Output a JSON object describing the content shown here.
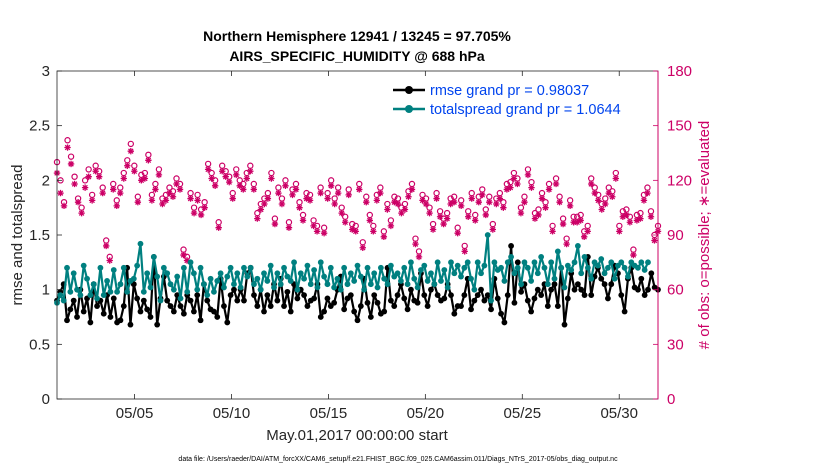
{
  "chart_data": {
    "type": "line",
    "title_line1": "Northern Hemisphere 12941 / 13245 = 97.705%",
    "title_line2": "AIRS_SPECIFIC_HUMIDITY @ 688 hPa",
    "xlabel": "May.01,2017 00:00:00 start",
    "ylabel_left": "rmse and totalspread",
    "ylabel_right": "# of obs: o=possible; ∗=evaluated",
    "footer": "data file: /Users/raeder/DAI/ATM_forcXX/CAM6_setup/f.e21.FHIST_BGC.f09_025.CAM6assim.011/Diags_NTrS_2017-05/obs_diag_output.nc",
    "xlim": [
      1.0,
      32.0
    ],
    "ylim_left": [
      0,
      3
    ],
    "ylim_right": [
      0,
      180
    ],
    "x_ticks": [
      5,
      10,
      15,
      20,
      25,
      30
    ],
    "x_tick_labels": [
      "05/05",
      "05/10",
      "05/15",
      "05/20",
      "05/25",
      "05/30"
    ],
    "y_ticks_left": [
      0,
      0.5,
      1,
      1.5,
      2,
      2.5,
      3
    ],
    "y_tick_labels_left": [
      "0",
      "0.5",
      "1",
      "1.5",
      "2",
      "2.5",
      "3"
    ],
    "y_ticks_right": [
      0,
      30,
      60,
      90,
      120,
      150,
      180
    ],
    "y_tick_labels_right": [
      "0",
      "30",
      "60",
      "90",
      "120",
      "150",
      "180"
    ],
    "colors": {
      "rmse": "#000000",
      "spread": "#008080",
      "obs": "#cc0066",
      "legend_text": "#0044ee"
    },
    "series": [
      {
        "name": "rmse grand pr = 0.98037",
        "axis": "left",
        "values": [
          0.9,
          0.98,
          1.05,
          0.72,
          0.82,
          0.9,
          0.75,
          1.0,
          0.8,
          0.92,
          0.7,
          1.05,
          0.85,
          0.9,
          0.78,
          0.95,
          0.75,
          0.92,
          0.7,
          0.72,
          0.85,
          1.2,
          0.68,
          1.05,
          0.92,
          0.8,
          0.9,
          0.82,
          0.75,
          1.3,
          0.68,
          0.92,
          1.12,
          0.9,
          0.85,
          0.8,
          0.95,
          0.85,
          0.78,
          0.95,
          0.9,
          0.8,
          0.95,
          0.72,
          1.05,
          0.9,
          0.82,
          0.8,
          0.75,
          1.1,
          0.85,
          0.7,
          0.95,
          1.0,
          0.9,
          1.0,
          0.9,
          1.15,
          1.2,
          0.95,
          0.85,
          1.0,
          0.8,
          0.95,
          0.85,
          1.05,
          0.9,
          1.1,
          0.85,
          0.98,
          0.8,
          1.05,
          0.92,
          1.0,
          0.95,
          0.85,
          0.9,
          0.92,
          1.05,
          0.75,
          0.8,
          0.92,
          0.85,
          0.88,
          1.0,
          1.12,
          0.82,
          0.92,
          0.95,
          0.8,
          0.72,
          0.85,
          1.1,
          0.88,
          0.75,
          0.95,
          0.88,
          0.78,
          0.8,
          1.2,
          0.9,
          0.85,
          0.95,
          1.05,
          0.92,
          0.82,
          1.0,
          0.9,
          0.88,
          1.15,
          0.95,
          0.85,
          1.0,
          1.05,
          0.95,
          0.9,
          0.92,
          1.05,
          0.95,
          0.78,
          0.85,
          0.85,
          0.95,
          1.1,
          0.82,
          0.9,
          0.95,
          1.0,
          0.9,
          0.95,
          0.82,
          1.1,
          0.92,
          0.78,
          0.7,
          0.95,
          1.4,
          0.88,
          1.25,
          0.98,
          1.05,
          0.9,
          0.8,
          0.92,
          1.0,
          0.95,
          1.05,
          0.85,
          1.0,
          1.05,
          0.85,
          1.2,
          0.68,
          0.92,
          1.15,
          1.0,
          1.05,
          1.0,
          0.95,
          1.3,
          0.95,
          1.12,
          1.2,
          1.1,
          1.05,
          0.92,
          1.05,
          1.22,
          1.15,
          0.95,
          0.8,
          1.1,
          1.2,
          1.02,
          1.0,
          1.1,
          0.95,
          1.0,
          1.15,
          1.02,
          1.0
        ]
      },
      {
        "name": "totalspread grand pr = 1.0644",
        "axis": "left",
        "values": [
          0.88,
          0.95,
          0.9,
          1.2,
          0.98,
          1.15,
          1.0,
          0.95,
          1.22,
          1.1,
          0.95,
          1.05,
          0.92,
          1.2,
          0.95,
          1.08,
          0.98,
          1.18,
          0.98,
          1.05,
          1.2,
          0.98,
          1.08,
          1.1,
          1.22,
          1.42,
          0.98,
          1.15,
          1.02,
          1.3,
          1.12,
          0.9,
          1.2,
          1.15,
          1.05,
          1.0,
          1.12,
          0.92,
          1.2,
          0.98,
          1.25,
          1.15,
          1.0,
          1.2,
          1.05,
          0.95,
          1.1,
          0.98,
          1.08,
          1.15,
          1.02,
          1.12,
          1.2,
          1.05,
          1.15,
          1.02,
          1.2,
          1.12,
          1.2,
          1.05,
          1.1,
          1.0,
          1.15,
          1.08,
          1.22,
          1.02,
          1.15,
          1.05,
          1.2,
          1.12,
          1.08,
          1.25,
          1.0,
          1.15,
          1.1,
          1.22,
          1.05,
          1.18,
          1.02,
          1.25,
          1.12,
          1.05,
          1.2,
          1.02,
          1.1,
          1.0,
          1.2,
          1.05,
          1.15,
          1.08,
          1.22,
          1.12,
          1.0,
          1.2,
          1.05,
          1.15,
          1.02,
          1.2,
          1.1,
          1.05,
          1.22,
          1.12,
          1.15,
          1.08,
          1.2,
          1.05,
          1.25,
          1.1,
          1.02,
          1.18,
          1.22,
          1.08,
          1.15,
          1.05,
          1.25,
          1.08,
          1.18,
          1.02,
          1.25,
          1.15,
          1.22,
          1.12,
          1.2,
          1.25,
          1.1,
          1.0,
          1.25,
          1.15,
          1.22,
          1.5,
          0.9,
          1.25,
          1.18,
          1.2,
          1.08,
          1.25,
          1.3,
          1.15,
          1.2,
          1.05,
          1.25,
          1.2,
          1.08,
          1.25,
          1.15,
          1.3,
          1.2,
          1.05,
          1.25,
          1.1,
          1.35,
          1.2,
          1.02,
          1.22,
          1.18,
          1.25,
          1.4,
          1.15,
          1.3,
          1.2,
          1.1,
          1.25,
          1.22,
          1.28,
          1.15,
          1.2,
          1.25,
          1.1,
          1.22,
          1.25,
          1.2,
          1.12,
          1.25,
          1.22,
          1.2,
          1.25,
          1.18,
          1.25
        ]
      }
    ],
    "obs_series": [
      {
        "name": "possible",
        "marker": "o",
        "values": [
          130,
          120,
          108,
          142,
          133,
          122,
          110,
          105,
          120,
          126,
          112,
          128,
          125,
          116,
          87,
          78,
          118,
          109,
          116,
          124,
          131,
          140,
          128,
          111,
          123,
          124,
          134,
          112,
          118,
          126,
          110,
          112,
          116,
          114,
          121,
          118,
          82,
          78,
          113,
          105,
          112,
          104,
          108,
          129,
          124,
          120,
          97,
          128,
          125,
          122,
          113,
          126,
          120,
          118,
          124,
          128,
          118,
          102,
          107,
          110,
          113,
          124,
          99,
          116,
          110,
          120,
          97,
          115,
          118,
          108,
          101,
          113,
          112,
          98,
          95,
          116,
          94,
          113,
          120,
          110,
          116,
          105,
          100,
          115,
          96,
          95,
          118,
          86,
          111,
          101,
          95,
          112,
          116,
          92,
          107,
          98,
          111,
          110,
          105,
          107,
          114,
          118,
          88,
          81,
          112,
          110,
          105,
          96,
          113,
          103,
          99,
          102,
          110,
          111,
          94,
          109,
          84,
          103,
          113,
          101,
          111,
          115,
          104,
          111,
          96,
          110,
          113,
          108,
          118,
          119,
          124,
          121,
          105,
          111,
          126,
          119,
          102,
          104,
          113,
          108,
          118,
          95,
          121,
          111,
          99,
          88,
          109,
          100,
          100,
          101,
          92,
          95,
          121,
          116,
          112,
          107,
          110,
          116,
          114,
          124,
          95,
          103,
          104,
          100,
          82,
          101,
          102,
          112,
          116,
          103,
          90,
          95
        ]
      },
      {
        "name": "evaluated",
        "marker": "*",
        "values": [
          124,
          113,
          106,
          138,
          129,
          118,
          108,
          102,
          116,
          122,
          109,
          125,
          122,
          113,
          84,
          76,
          115,
          106,
          113,
          121,
          128,
          136,
          125,
          108,
          120,
          121,
          131,
          109,
          115,
          123,
          107,
          109,
          113,
          111,
          118,
          115,
          79,
          76,
          110,
          102,
          109,
          101,
          105,
          126,
          121,
          117,
          94,
          125,
          122,
          119,
          110,
          123,
          117,
          115,
          121,
          125,
          115,
          99,
          104,
          107,
          110,
          121,
          96,
          113,
          107,
          117,
          94,
          112,
          115,
          105,
          98,
          110,
          109,
          95,
          92,
          113,
          91,
          110,
          117,
          107,
          113,
          102,
          97,
          112,
          93,
          92,
          115,
          83,
          108,
          98,
          92,
          109,
          113,
          89,
          104,
          95,
          108,
          107,
          102,
          104,
          111,
          115,
          85,
          78,
          109,
          107,
          102,
          93,
          110,
          100,
          96,
          99,
          107,
          108,
          91,
          106,
          81,
          100,
          110,
          98,
          108,
          112,
          101,
          108,
          93,
          107,
          110,
          105,
          115,
          116,
          121,
          118,
          102,
          108,
          123,
          116,
          99,
          101,
          110,
          105,
          115,
          92,
          118,
          108,
          96,
          85,
          106,
          97,
          97,
          98,
          89,
          92,
          118,
          113,
          109,
          104,
          107,
          113,
          111,
          121,
          92,
          100,
          101,
          97,
          79,
          98,
          99,
          109,
          113,
          100,
          87,
          92
        ]
      }
    ],
    "legend": {
      "entries": [
        "rmse grand pr = 0.98037",
        "totalspread grand pr = 1.0644"
      ],
      "position": "top-right"
    }
  }
}
